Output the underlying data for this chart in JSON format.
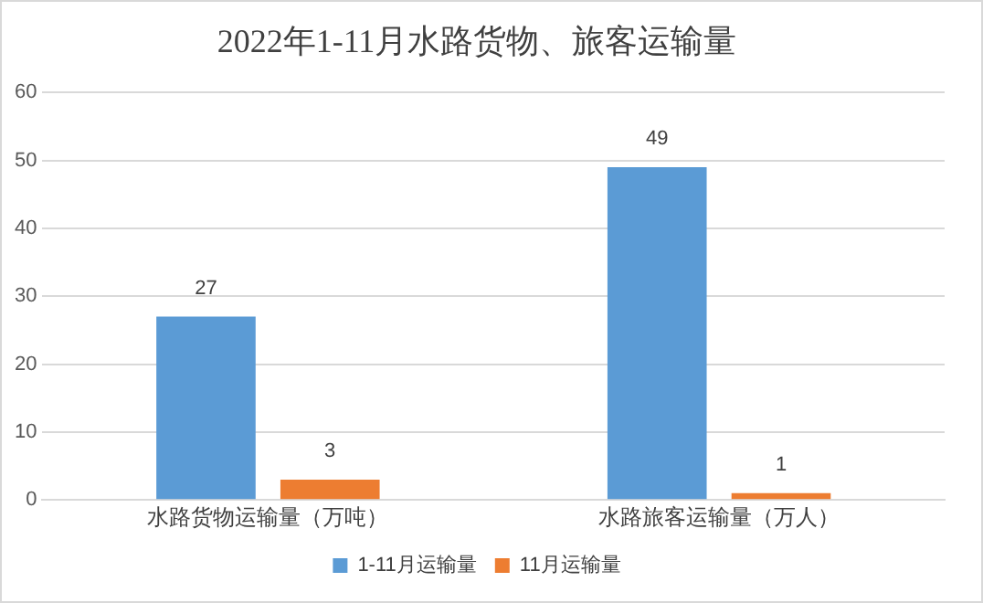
{
  "chart_data": {
    "type": "bar",
    "title": "2022年1-11月水路货物、旅客运输量",
    "categories": [
      "水路货物运输量（万吨）",
      "水路旅客运输量（万人）"
    ],
    "series": [
      {
        "name": "1-11月运输量",
        "color": "#5b9bd5",
        "values": [
          27,
          49
        ]
      },
      {
        "name": "11月运输量",
        "color": "#ed7d31",
        "values": [
          3,
          1
        ]
      }
    ],
    "ylim": [
      0,
      60
    ],
    "yticks": [
      0,
      10,
      20,
      30,
      40,
      50,
      60
    ],
    "grid": "y",
    "legend": "bottom",
    "data_labels": true
  }
}
